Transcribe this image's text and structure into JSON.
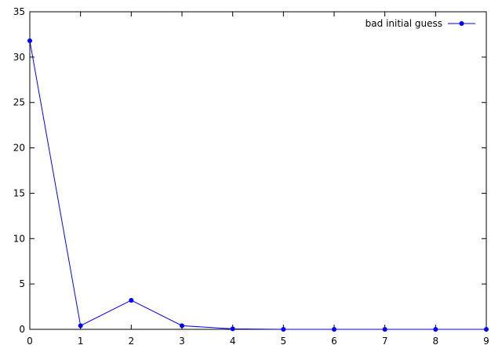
{
  "chart_data": {
    "type": "line",
    "title": "",
    "xlabel": "",
    "ylabel": "",
    "xlim": [
      0,
      9
    ],
    "ylim": [
      0,
      35
    ],
    "xticks": [
      0,
      1,
      2,
      3,
      4,
      5,
      6,
      7,
      8,
      9
    ],
    "yticks": [
      0,
      5,
      10,
      15,
      20,
      25,
      30,
      35
    ],
    "grid": false,
    "legend_position": "top-right",
    "series": [
      {
        "name": "bad initial guess",
        "color": "#0000ff",
        "marker": "circle",
        "x": [
          0,
          1,
          2,
          3,
          4,
          5,
          6,
          7,
          8,
          9
        ],
        "y": [
          31.8,
          0.4,
          3.2,
          0.4,
          0.05,
          0.0,
          0.0,
          0.0,
          0.0,
          0.0
        ]
      }
    ]
  }
}
